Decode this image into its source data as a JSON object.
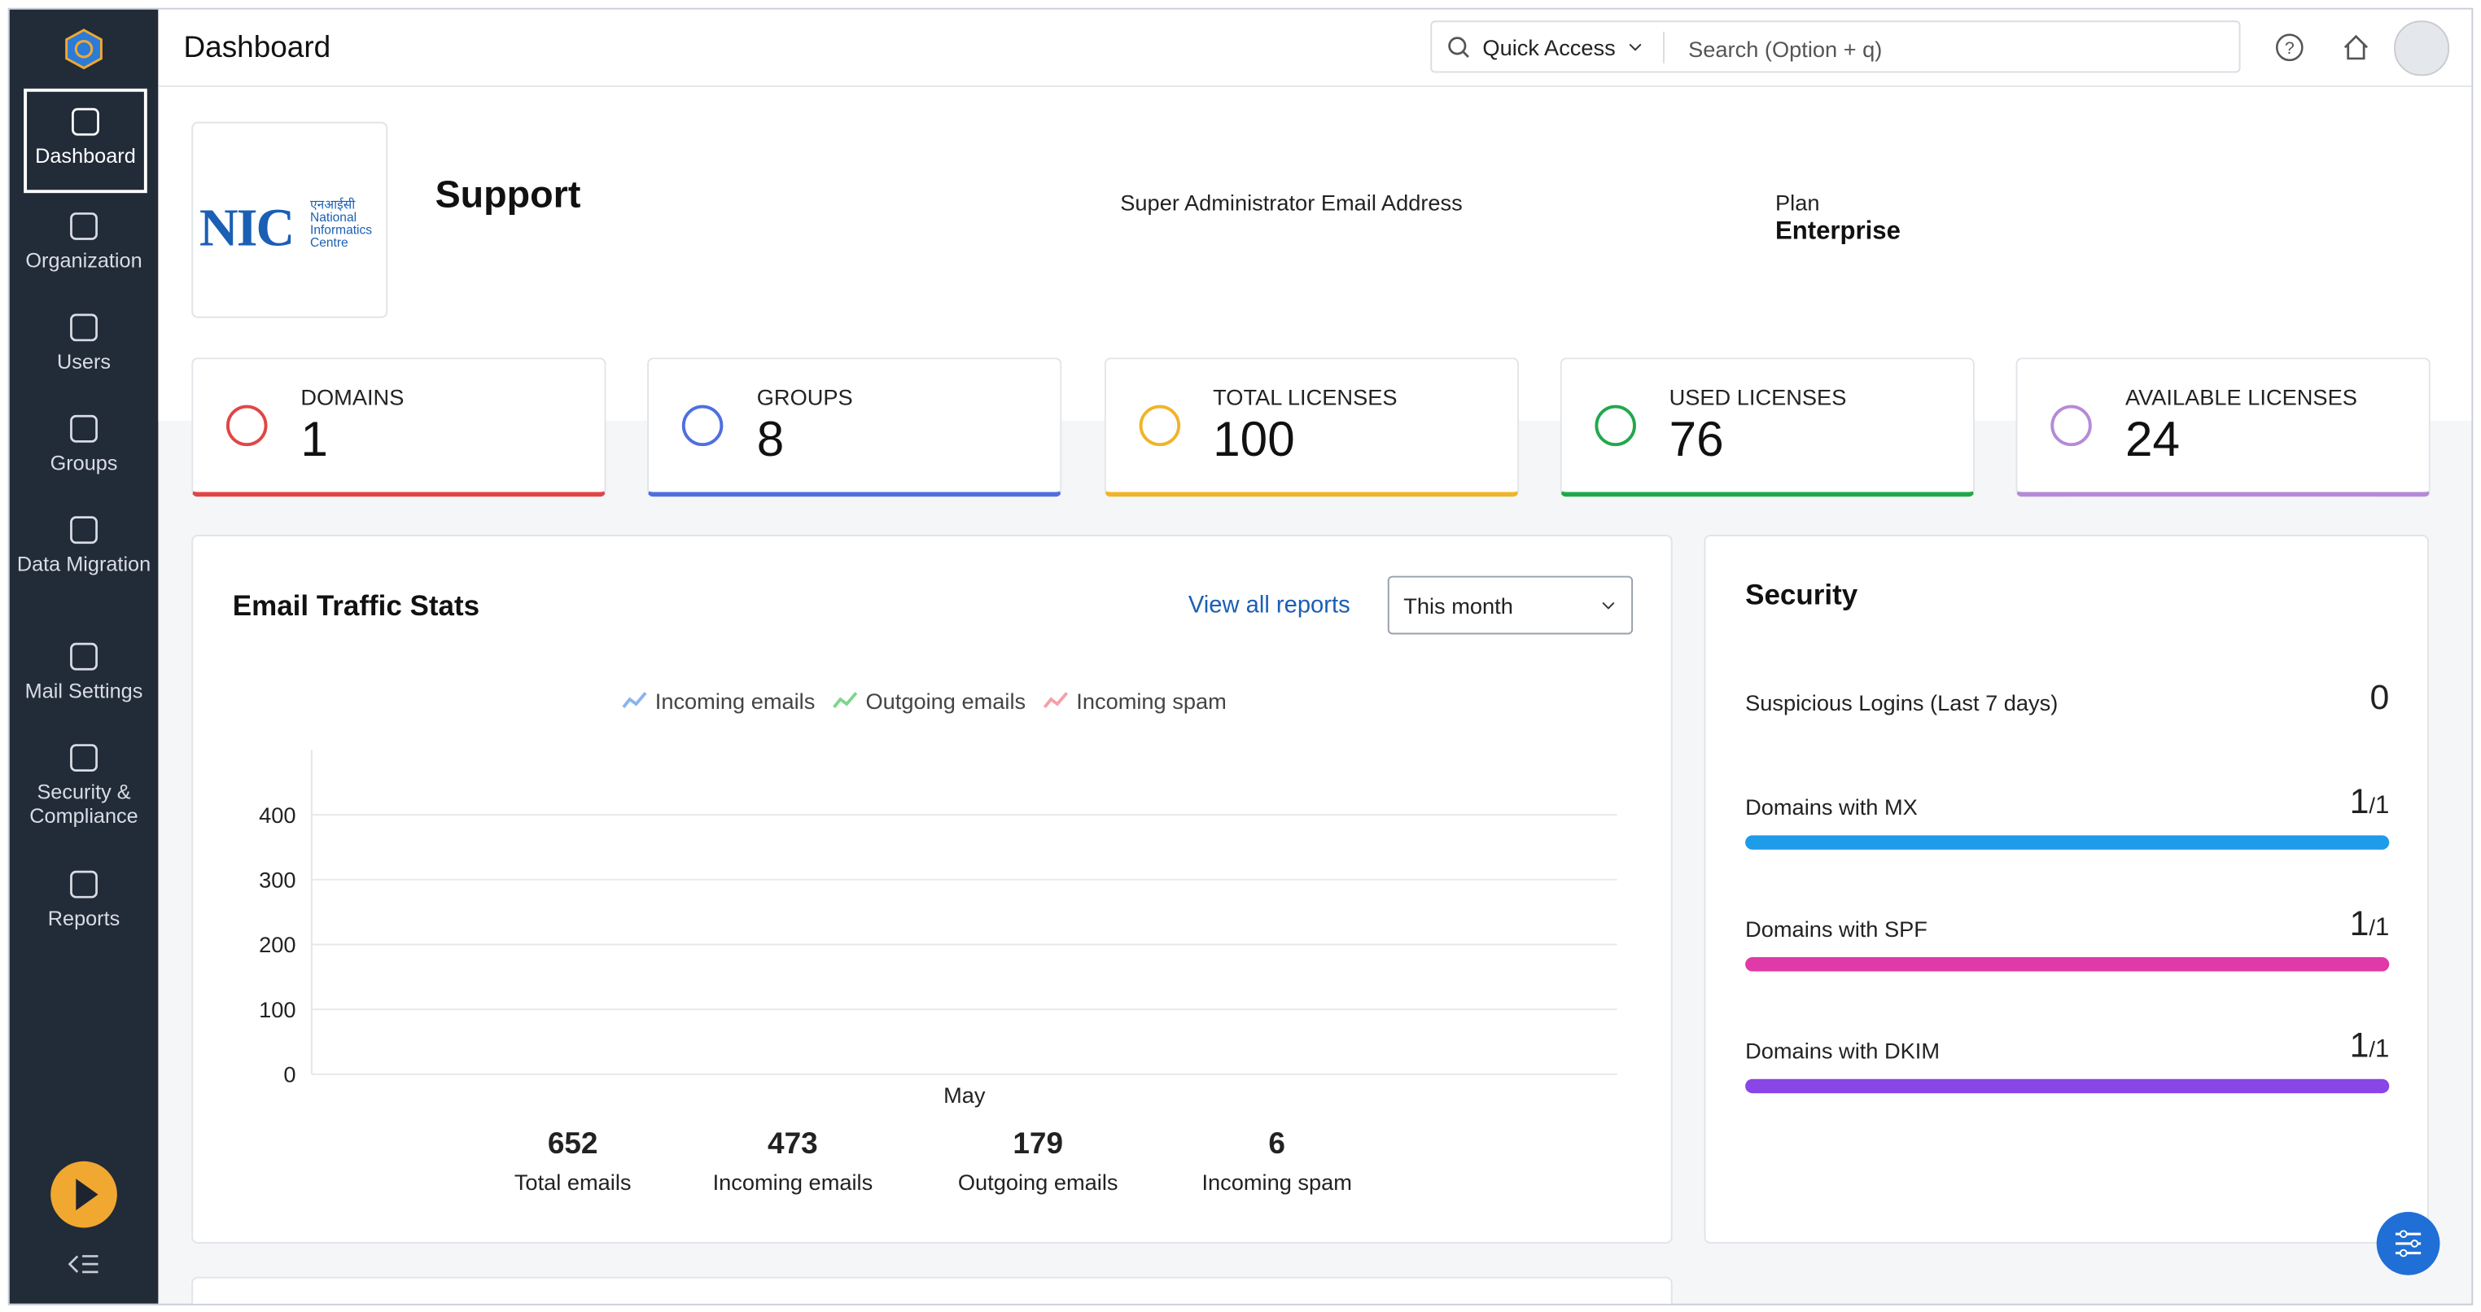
{
  "header": {
    "title": "Dashboard",
    "quick_access": "Quick Access",
    "search_placeholder": "Search (Option + q)"
  },
  "sidebar": {
    "items": [
      "Dashboard",
      "Organization",
      "Users",
      "Groups",
      "Data Migration",
      "Mail Settings",
      "Security & Compliance",
      "Reports"
    ]
  },
  "org": {
    "name": "Support",
    "logo_lines": [
      "एनआईसी",
      "National",
      "Informatics",
      "Centre"
    ],
    "admin_label": "Super Administrator Email Address",
    "plan_label": "Plan",
    "plan": "Enterprise"
  },
  "stats": [
    {
      "label": "DOMAINS",
      "value": 1,
      "color": "#e04646"
    },
    {
      "label": "GROUPS",
      "value": 8,
      "color": "#4f6fe0"
    },
    {
      "label": "TOTAL LICENSES",
      "value": 100,
      "color": "#f0b429"
    },
    {
      "label": "USED LICENSES",
      "value": 76,
      "color": "#22a84a"
    },
    {
      "label": "AVAILABLE LICENSES",
      "value": 24,
      "color": "#b58ad8"
    }
  ],
  "traffic": {
    "title": "Email Traffic Stats",
    "view_all": "View all reports",
    "period": "This month",
    "legend": [
      {
        "name": "Incoming emails",
        "color": "#8ab4f0"
      },
      {
        "name": "Outgoing emails",
        "color": "#7ed68c"
      },
      {
        "name": "Incoming spam",
        "color": "#f3a0a8"
      }
    ],
    "categories": [
      "May"
    ],
    "ylim": [
      0,
      500
    ],
    "yticks": [
      0,
      100,
      200,
      300,
      400
    ],
    "totals": [
      {
        "value": 652,
        "label": "Total emails"
      },
      {
        "value": 473,
        "label": "Incoming emails"
      },
      {
        "value": 179,
        "label": "Outgoing emails"
      },
      {
        "value": 6,
        "label": "Incoming spam"
      }
    ]
  },
  "security": {
    "title": "Security",
    "suspicious_label": "Suspicious Logins (Last 7 days)",
    "suspicious": 0,
    "domains": [
      {
        "label": "Domains with MX",
        "count": 1,
        "total": 1,
        "color": "#1e9be9"
      },
      {
        "label": "Domains with SPF",
        "count": 1,
        "total": 1,
        "color": "#e03aa8"
      },
      {
        "label": "Domains with DKIM",
        "count": 1,
        "total": 1,
        "color": "#8a45e6"
      }
    ]
  }
}
